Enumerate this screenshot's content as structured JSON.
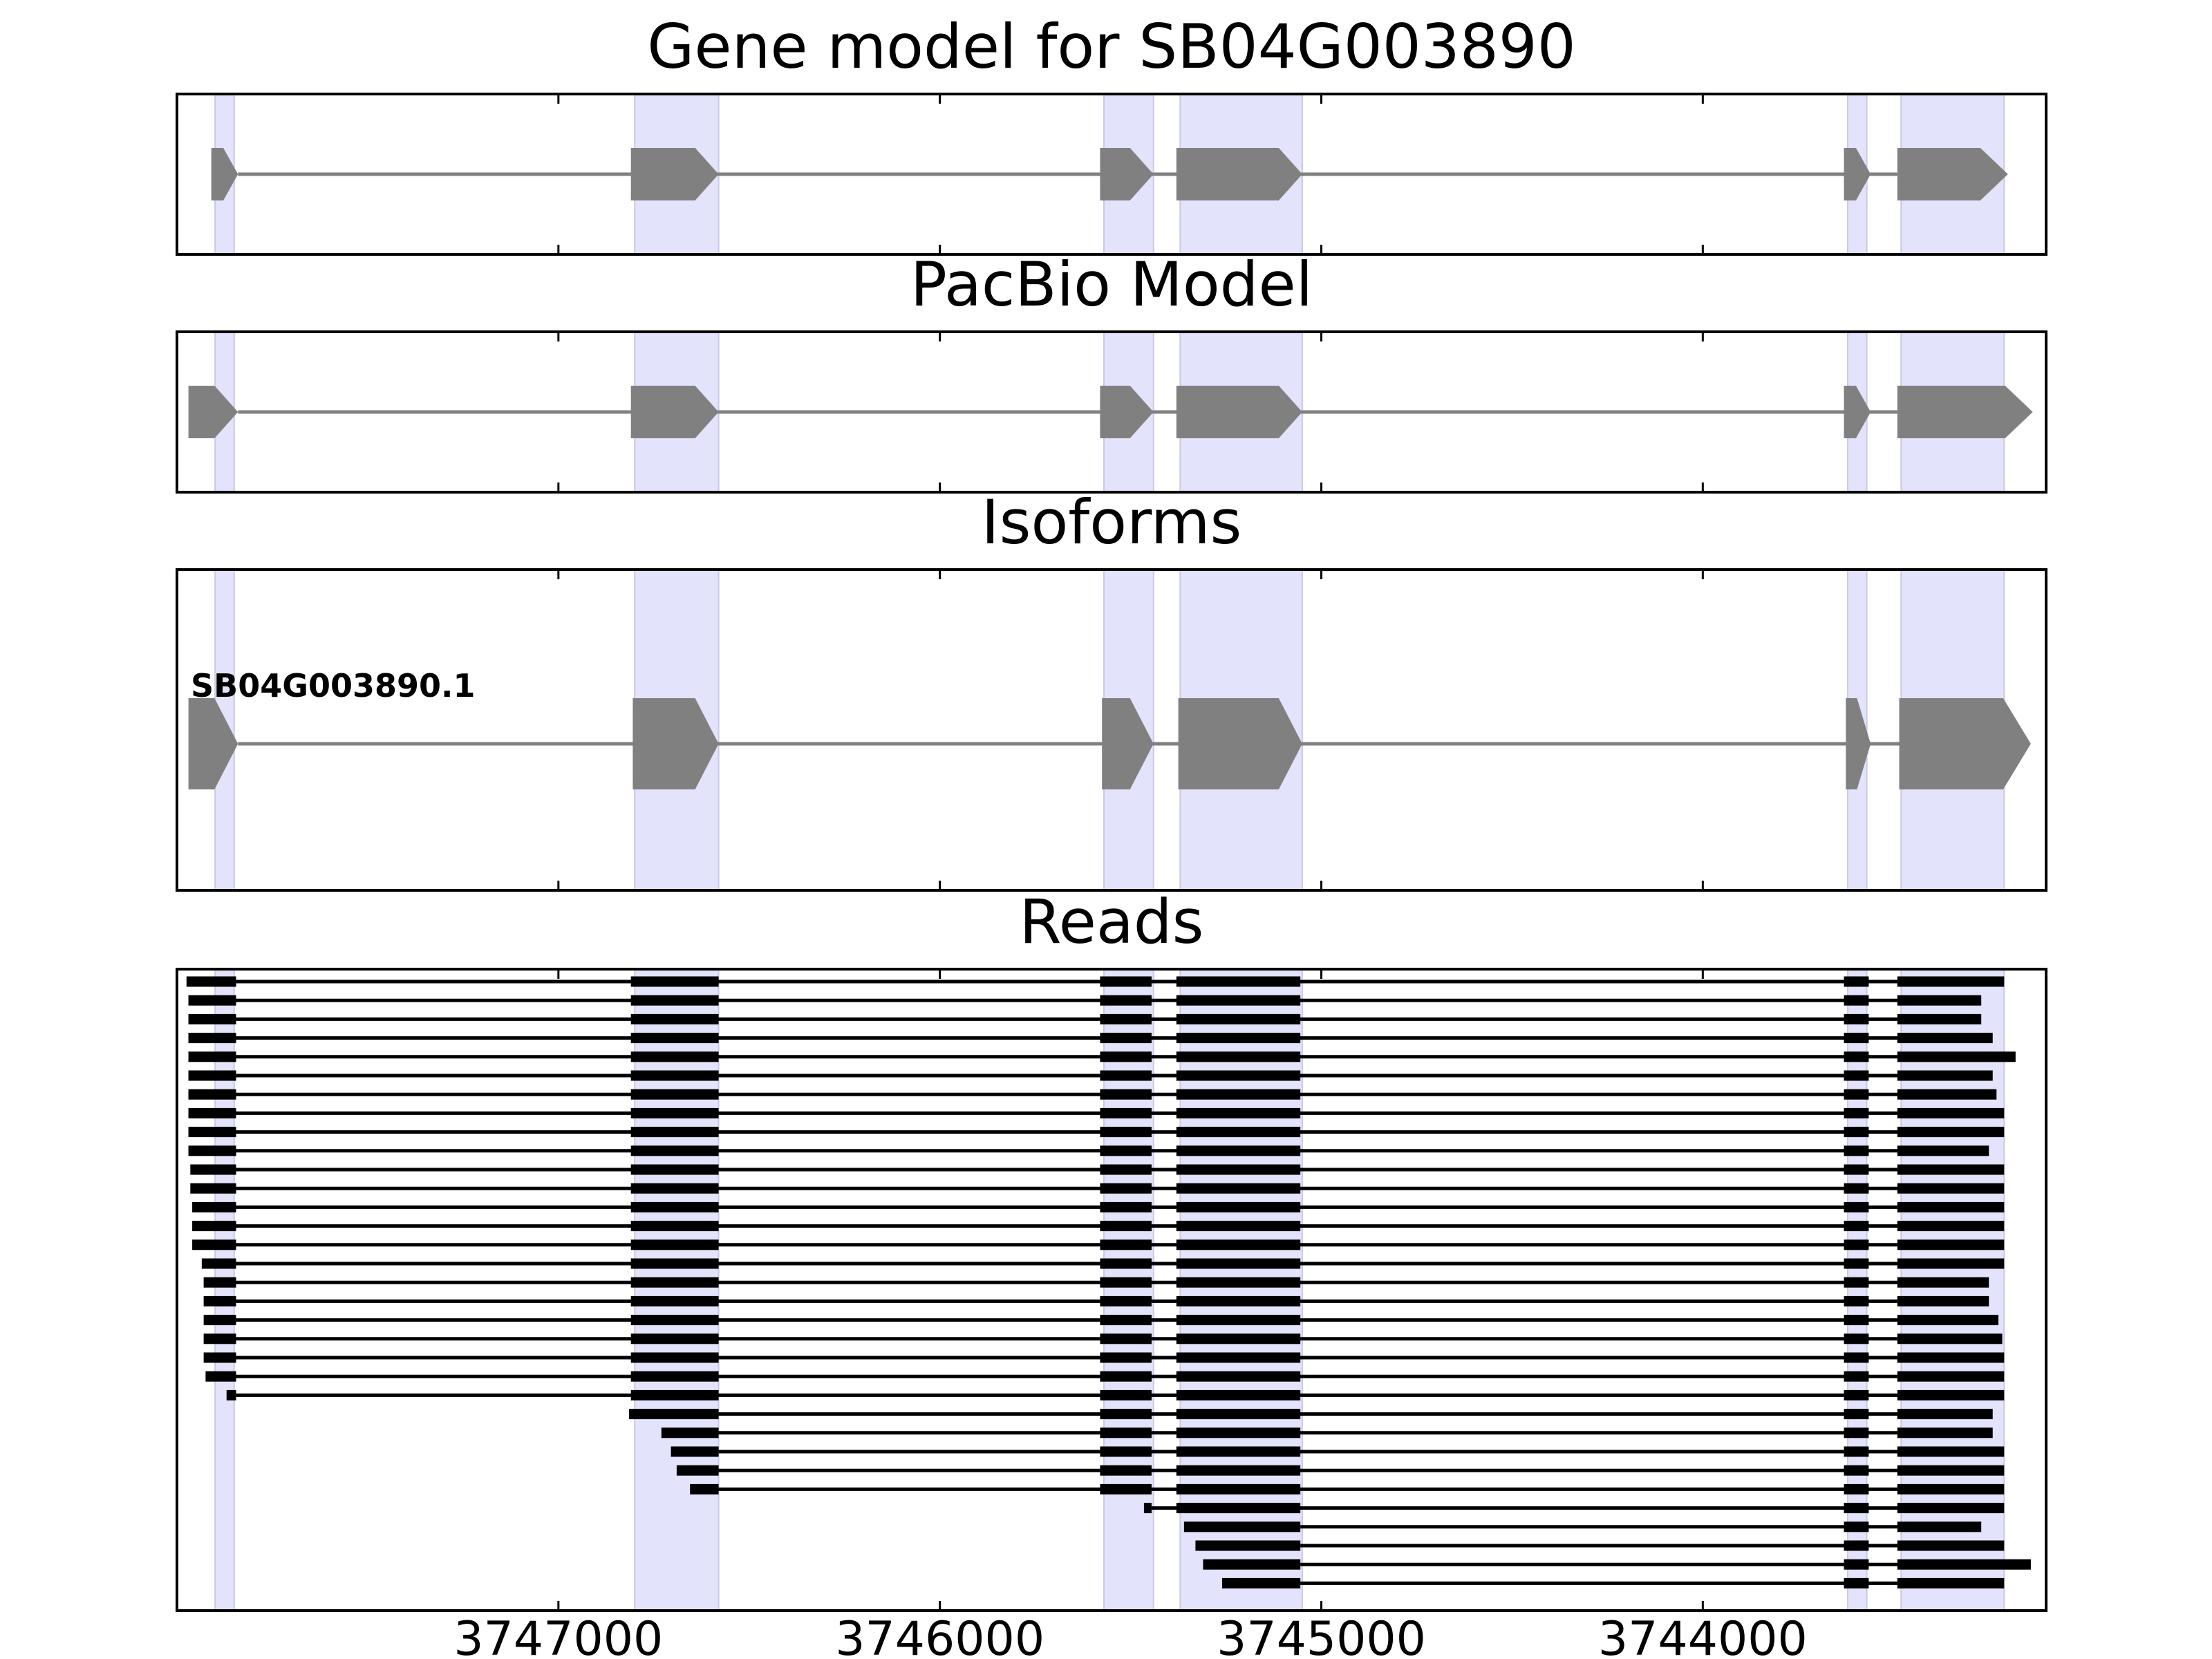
{
  "chart_data": {
    "type": "gene-track",
    "x_axis": {
      "reversed": true,
      "range": [
        3748000,
        3743100
      ],
      "ticks": [
        3747000,
        3746000,
        3745000,
        3744000
      ],
      "tick_labels": [
        "3747000",
        "3746000",
        "3745000",
        "3744000"
      ]
    },
    "colors": {
      "shade": "#e3e3fb",
      "feature": "#808080",
      "read": "#000000",
      "axis": "#000000"
    },
    "highlight_regions": [
      [
        3747900,
        3747850
      ],
      [
        3746800,
        3746580
      ],
      [
        3745570,
        3745440
      ],
      [
        3745370,
        3745050
      ],
      [
        3743620,
        3743570
      ],
      [
        3743480,
        3743210
      ]
    ],
    "panels": [
      {
        "title": "Gene model for SB04G003890",
        "features": [
          {
            "label": "",
            "exons": [
              [
                3747910,
                3747840
              ],
              [
                3746810,
                3746580
              ],
              [
                3745580,
                3745440
              ],
              [
                3745380,
                3745050
              ],
              [
                3743630,
                3743560
              ],
              [
                3743490,
                3743200
              ]
            ]
          }
        ]
      },
      {
        "title": "PacBio Model",
        "features": [
          {
            "label": "",
            "exons": [
              [
                3747970,
                3747840
              ],
              [
                3746810,
                3746580
              ],
              [
                3745580,
                3745440
              ],
              [
                3745380,
                3745050
              ],
              [
                3743630,
                3743560
              ],
              [
                3743490,
                3743135
              ]
            ]
          }
        ]
      },
      {
        "title": "Isoforms",
        "features": [
          {
            "label": "SB04G003890.1",
            "exons": [
              [
                3747970,
                3747840
              ],
              [
                3746805,
                3746580
              ],
              [
                3745575,
                3745440
              ],
              [
                3745375,
                3745050
              ],
              [
                3743625,
                3743560
              ],
              [
                3743485,
                3743140
              ]
            ]
          }
        ]
      },
      {
        "title": "Reads",
        "reads": [
          [
            [
              3747975,
              3747845
            ],
            [
              3746810,
              3746580
            ],
            [
              3745580,
              3745445
            ],
            [
              3745380,
              3745055
            ],
            [
              3743630,
              3743565
            ],
            [
              3743490,
              3743210
            ]
          ],
          [
            [
              3747970,
              3747845
            ],
            [
              3746810,
              3746580
            ],
            [
              3745580,
              3745445
            ],
            [
              3745380,
              3745055
            ],
            [
              3743630,
              3743565
            ],
            [
              3743490,
              3743270
            ]
          ],
          [
            [
              3747970,
              3747845
            ],
            [
              3746810,
              3746580
            ],
            [
              3745580,
              3745445
            ],
            [
              3745380,
              3745055
            ],
            [
              3743630,
              3743565
            ],
            [
              3743490,
              3743270
            ]
          ],
          [
            [
              3747970,
              3747845
            ],
            [
              3746810,
              3746580
            ],
            [
              3745580,
              3745445
            ],
            [
              3745380,
              3745055
            ],
            [
              3743630,
              3743565
            ],
            [
              3743490,
              3743240
            ]
          ],
          [
            [
              3747970,
              3747845
            ],
            [
              3746810,
              3746580
            ],
            [
              3745580,
              3745445
            ],
            [
              3745380,
              3745055
            ],
            [
              3743630,
              3743565
            ],
            [
              3743490,
              3743180
            ]
          ],
          [
            [
              3747970,
              3747845
            ],
            [
              3746810,
              3746580
            ],
            [
              3745580,
              3745445
            ],
            [
              3745380,
              3745055
            ],
            [
              3743630,
              3743565
            ],
            [
              3743490,
              3743240
            ]
          ],
          [
            [
              3747970,
              3747845
            ],
            [
              3746810,
              3746580
            ],
            [
              3745580,
              3745445
            ],
            [
              3745380,
              3745055
            ],
            [
              3743630,
              3743565
            ],
            [
              3743490,
              3743230
            ]
          ],
          [
            [
              3747970,
              3747845
            ],
            [
              3746810,
              3746580
            ],
            [
              3745580,
              3745445
            ],
            [
              3745380,
              3745055
            ],
            [
              3743630,
              3743565
            ],
            [
              3743490,
              3743210
            ]
          ],
          [
            [
              3747970,
              3747845
            ],
            [
              3746810,
              3746580
            ],
            [
              3745580,
              3745445
            ],
            [
              3745380,
              3745055
            ],
            [
              3743630,
              3743565
            ],
            [
              3743490,
              3743210
            ]
          ],
          [
            [
              3747970,
              3747845
            ],
            [
              3746810,
              3746580
            ],
            [
              3745580,
              3745445
            ],
            [
              3745380,
              3745055
            ],
            [
              3743630,
              3743565
            ],
            [
              3743490,
              3743250
            ]
          ],
          [
            [
              3747965,
              3747845
            ],
            [
              3746810,
              3746580
            ],
            [
              3745580,
              3745445
            ],
            [
              3745380,
              3745055
            ],
            [
              3743630,
              3743565
            ],
            [
              3743490,
              3743210
            ]
          ],
          [
            [
              3747965,
              3747845
            ],
            [
              3746810,
              3746580
            ],
            [
              3745580,
              3745445
            ],
            [
              3745380,
              3745055
            ],
            [
              3743630,
              3743565
            ],
            [
              3743490,
              3743210
            ]
          ],
          [
            [
              3747960,
              3747845
            ],
            [
              3746810,
              3746580
            ],
            [
              3745580,
              3745445
            ],
            [
              3745380,
              3745055
            ],
            [
              3743630,
              3743565
            ],
            [
              3743490,
              3743210
            ]
          ],
          [
            [
              3747960,
              3747845
            ],
            [
              3746810,
              3746580
            ],
            [
              3745580,
              3745445
            ],
            [
              3745380,
              3745055
            ],
            [
              3743630,
              3743565
            ],
            [
              3743490,
              3743210
            ]
          ],
          [
            [
              3747960,
              3747845
            ],
            [
              3746810,
              3746580
            ],
            [
              3745580,
              3745445
            ],
            [
              3745380,
              3745055
            ],
            [
              3743630,
              3743565
            ],
            [
              3743490,
              3743210
            ]
          ],
          [
            [
              3747935,
              3747845
            ],
            [
              3746810,
              3746580
            ],
            [
              3745580,
              3745445
            ],
            [
              3745380,
              3745055
            ],
            [
              3743630,
              3743565
            ],
            [
              3743490,
              3743210
            ]
          ],
          [
            [
              3747930,
              3747845
            ],
            [
              3746810,
              3746580
            ],
            [
              3745580,
              3745445
            ],
            [
              3745380,
              3745055
            ],
            [
              3743630,
              3743565
            ],
            [
              3743490,
              3743250
            ]
          ],
          [
            [
              3747930,
              3747845
            ],
            [
              3746810,
              3746580
            ],
            [
              3745580,
              3745445
            ],
            [
              3745380,
              3745055
            ],
            [
              3743630,
              3743565
            ],
            [
              3743490,
              3743250
            ]
          ],
          [
            [
              3747930,
              3747845
            ],
            [
              3746810,
              3746580
            ],
            [
              3745580,
              3745445
            ],
            [
              3745380,
              3745055
            ],
            [
              3743630,
              3743565
            ],
            [
              3743490,
              3743225
            ]
          ],
          [
            [
              3747930,
              3747845
            ],
            [
              3746810,
              3746580
            ],
            [
              3745580,
              3745445
            ],
            [
              3745380,
              3745055
            ],
            [
              3743630,
              3743565
            ],
            [
              3743490,
              3743215
            ]
          ],
          [
            [
              3747930,
              3747845
            ],
            [
              3746810,
              3746580
            ],
            [
              3745580,
              3745445
            ],
            [
              3745380,
              3745055
            ],
            [
              3743630,
              3743565
            ],
            [
              3743490,
              3743210
            ]
          ],
          [
            [
              3747925,
              3747845
            ],
            [
              3746810,
              3746580
            ],
            [
              3745580,
              3745445
            ],
            [
              3745380,
              3745055
            ],
            [
              3743630,
              3743565
            ],
            [
              3743490,
              3743210
            ]
          ],
          [
            [
              3747870,
              3747845
            ],
            [
              3746810,
              3746580
            ],
            [
              3745580,
              3745445
            ],
            [
              3745380,
              3745055
            ],
            [
              3743630,
              3743565
            ],
            [
              3743490,
              3743210
            ]
          ],
          [
            [
              3746815,
              3746580
            ],
            [
              3745580,
              3745445
            ],
            [
              3745380,
              3745055
            ],
            [
              3743630,
              3743565
            ],
            [
              3743490,
              3743240
            ]
          ],
          [
            [
              3746730,
              3746580
            ],
            [
              3745580,
              3745445
            ],
            [
              3745380,
              3745055
            ],
            [
              3743630,
              3743565
            ],
            [
              3743490,
              3743240
            ]
          ],
          [
            [
              3746705,
              3746580
            ],
            [
              3745580,
              3745445
            ],
            [
              3745380,
              3745055
            ],
            [
              3743630,
              3743565
            ],
            [
              3743490,
              3743210
            ]
          ],
          [
            [
              3746690,
              3746580
            ],
            [
              3745580,
              3745445
            ],
            [
              3745380,
              3745055
            ],
            [
              3743630,
              3743565
            ],
            [
              3743490,
              3743210
            ]
          ],
          [
            [
              3746655,
              3746580
            ],
            [
              3745580,
              3745445
            ],
            [
              3745380,
              3745055
            ],
            [
              3743630,
              3743565
            ],
            [
              3743490,
              3743210
            ]
          ],
          [
            [
              3745465,
              3745445
            ],
            [
              3745380,
              3745055
            ],
            [
              3743630,
              3743565
            ],
            [
              3743490,
              3743210
            ]
          ],
          [
            [
              3745360,
              3745055
            ],
            [
              3743630,
              3743565
            ],
            [
              3743490,
              3743270
            ]
          ],
          [
            [
              3745330,
              3745055
            ],
            [
              3743630,
              3743565
            ],
            [
              3743490,
              3743210
            ]
          ],
          [
            [
              3745310,
              3745055
            ],
            [
              3743630,
              3743565
            ],
            [
              3743490,
              3743140
            ]
          ],
          [
            [
              3745260,
              3745055
            ],
            [
              3743630,
              3743565
            ],
            [
              3743490,
              3743210
            ]
          ]
        ]
      }
    ]
  }
}
